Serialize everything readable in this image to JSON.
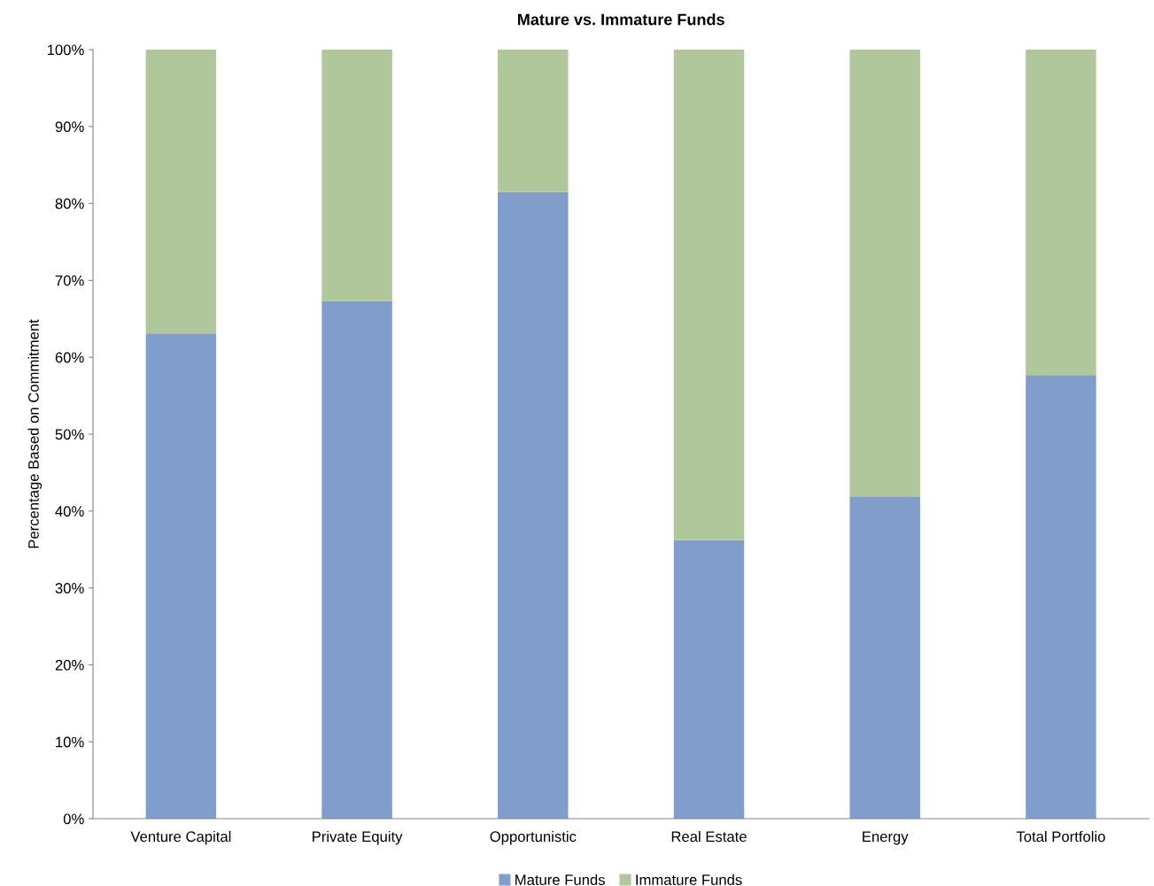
{
  "chart_data": {
    "type": "bar",
    "stacked": true,
    "title": "Mature vs. Immature Funds",
    "ylabel": "Percentage Based on Commitment",
    "categories": [
      "Venture Capital",
      "Private Equity",
      "Opportunistic",
      "Real Estate",
      "Energy",
      "Total Portfolio"
    ],
    "series": [
      {
        "name": "Mature Funds",
        "color": "#819dcb",
        "values": [
          63.1,
          67.3,
          81.5,
          36.2,
          41.9,
          57.7
        ]
      },
      {
        "name": "Immature Funds",
        "color": "#b0c79b",
        "values": [
          36.9,
          32.7,
          18.5,
          63.8,
          58.1,
          42.3
        ]
      }
    ],
    "ylim": [
      0,
      100
    ],
    "yticks": [
      {
        "value": 0,
        "label": "0%"
      },
      {
        "value": 10,
        "label": "10%"
      },
      {
        "value": 20,
        "label": "20%"
      },
      {
        "value": 30,
        "label": "30%"
      },
      {
        "value": 40,
        "label": "40%"
      },
      {
        "value": 50,
        "label": "50%"
      },
      {
        "value": 60,
        "label": "60%"
      },
      {
        "value": 70,
        "label": "70%"
      },
      {
        "value": 80,
        "label": "80%"
      },
      {
        "value": 90,
        "label": "90%"
      },
      {
        "value": 100,
        "label": "100%"
      }
    ],
    "grid": false,
    "legend": "bottom"
  }
}
